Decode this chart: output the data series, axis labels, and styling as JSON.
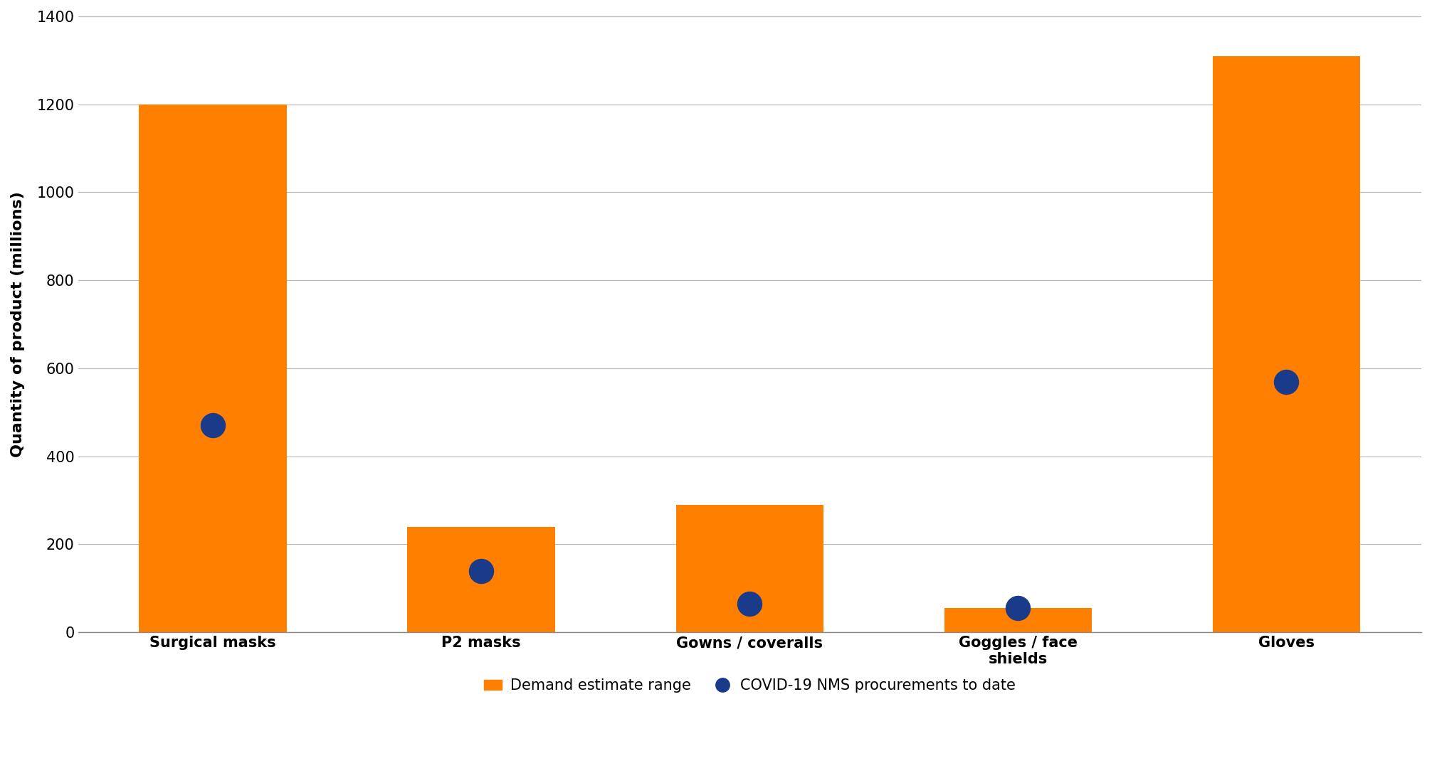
{
  "categories": [
    "Surgical masks",
    "P2 masks",
    "Gowns / coveralls",
    "Goggles / face\nshields",
    "Gloves"
  ],
  "bar_top": [
    1200,
    240,
    290,
    55,
    1310
  ],
  "procurement": [
    470,
    140,
    65,
    55,
    570
  ],
  "bar_color": "#FF7F00",
  "dot_color": "#1A3A8A",
  "ylabel": "Quantity of product (millions)",
  "ylim": [
    0,
    1400
  ],
  "yticks": [
    0,
    200,
    400,
    600,
    800,
    1000,
    1200,
    1400
  ],
  "legend_bar_label": "Demand estimate range",
  "legend_dot_label": "COVID-19 NMS procurements to date",
  "bg_color": "#FFFFFF",
  "grid_color": "#BBBBBB",
  "bar_width": 0.55,
  "dot_size": 600,
  "label_fontsize": 16,
  "tick_fontsize": 15,
  "legend_fontsize": 15
}
